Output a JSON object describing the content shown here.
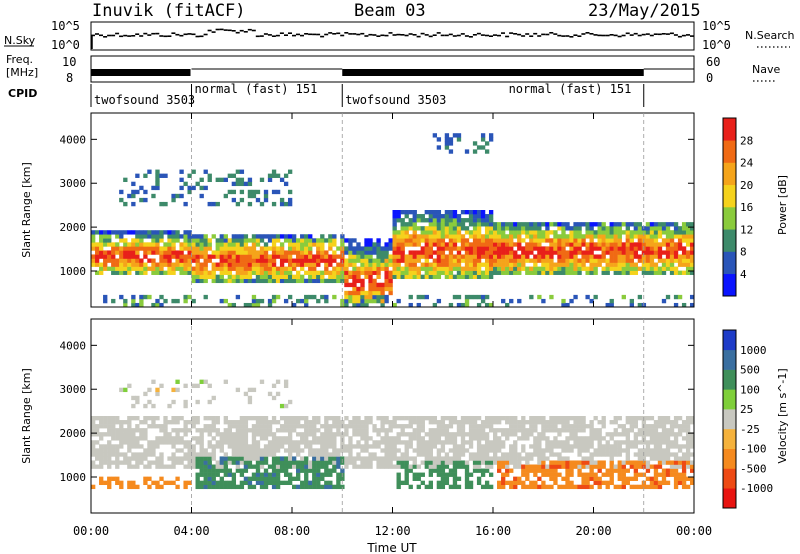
{
  "header": {
    "station": "Inuvik (fitACF)",
    "beam": "Beam 03",
    "date": "23/May/2015"
  },
  "strips": {
    "nsky_label": "N.Sky",
    "nsky_ticks": [
      "10^5",
      "10^0"
    ],
    "nsearch_label": "N.Search",
    "nsearch_ticks": [
      "10^5",
      "10^0"
    ],
    "freq_label_1": "Freq.",
    "freq_label_2": "[MHz]",
    "freq_ticks": [
      "10",
      "8"
    ],
    "nave_label": "Nave",
    "nave_ticks": [
      "60",
      "0"
    ],
    "cpid_label": "CPID",
    "cpid_segments": [
      {
        "label": "twofsound 3503",
        "start": 0,
        "end": 4
      },
      {
        "label": "normal (fast) 151",
        "start": 4,
        "end": 10
      },
      {
        "label": "twofsound 3503",
        "start": 10,
        "end": 22
      },
      {
        "label": "normal (fast) 151",
        "start": 16.5,
        "end": 22
      }
    ]
  },
  "chart_data": [
    {
      "type": "heatmap",
      "quantity": "Power",
      "ylabel": "Slant Range [km]",
      "xlabel": "Time UT",
      "x_ticks": [
        "00:00",
        "04:00",
        "08:00",
        "12:00",
        "16:00",
        "20:00",
        "00:00"
      ],
      "y_ticks": [
        "1000",
        "2000",
        "3000",
        "4000"
      ],
      "ylim": [
        180,
        4600
      ],
      "xlim": [
        0,
        24
      ],
      "colorbar_label": "Power [dB]",
      "colorbar_ticks": [
        "4",
        "8",
        "12",
        "16",
        "20",
        "24",
        "28"
      ],
      "colorbar_colors": [
        "#0a14ff",
        "#2a55b8",
        "#3d8a6a",
        "#8acb3c",
        "#f5d21c",
        "#f5a41a",
        "#f06a14",
        "#e8201a"
      ],
      "features": [
        {
          "name": "main E/F band",
          "t": [
            0,
            4
          ],
          "range": [
            900,
            1900
          ],
          "level": 24
        },
        {
          "name": "strong core",
          "t": [
            4,
            10
          ],
          "range": [
            700,
            1700
          ],
          "level": 28
        },
        {
          "name": "strong core",
          "t": [
            10,
            12
          ],
          "range": [
            200,
            1600
          ],
          "level": 28
        },
        {
          "name": "mid band",
          "t": [
            12,
            24
          ],
          "range": [
            800,
            2300
          ],
          "level": 22
        },
        {
          "name": "upper echoes",
          "t": [
            1,
            8
          ],
          "range": [
            2400,
            3300
          ],
          "level": 10
        }
      ]
    },
    {
      "type": "heatmap",
      "quantity": "Velocity",
      "ylabel": "Slant Range [km]",
      "xlabel": "Time UT",
      "x_ticks": [
        "00:00",
        "04:00",
        "08:00",
        "12:00",
        "16:00",
        "20:00",
        "00:00"
      ],
      "y_ticks": [
        "1000",
        "2000",
        "3000",
        "4000"
      ],
      "ylim": [
        180,
        4600
      ],
      "xlim": [
        0,
        24
      ],
      "colorbar_label": "Velocity [m s^-1]",
      "colorbar_ticks": [
        "1000",
        "500",
        "100",
        "25",
        "-25",
        "-100",
        "-500",
        "-1000"
      ],
      "colorbar_colors": [
        "#1e3cc8",
        "#3a6fa0",
        "#3f8f5a",
        "#7fcf3a",
        "#c8c8c0",
        "#f5b23c",
        "#f58a1e",
        "#ee4a14",
        "#e81410"
      ],
      "features": [
        {
          "name": "ground scatter",
          "t": [
            0,
            24
          ],
          "range": [
            1200,
            2300
          ],
          "level": 0
        },
        {
          "name": "positive flow",
          "t": [
            4,
            10
          ],
          "range": [
            700,
            1400
          ],
          "level": 300
        },
        {
          "name": "negative flow",
          "t": [
            16,
            24
          ],
          "range": [
            700,
            1300
          ],
          "level": -300
        }
      ]
    }
  ]
}
